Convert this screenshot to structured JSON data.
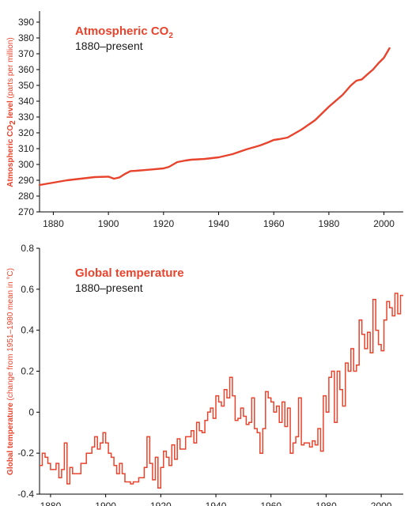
{
  "theme": {
    "accent": "#e8432c",
    "axis": "#000000",
    "text": "#222222"
  },
  "chart_data": [
    {
      "type": "line",
      "title": "Atmospheric CO",
      "title_subscript": "2",
      "subtitle": "1880–present",
      "ylabel": "Atmospheric CO",
      "ylabel_subscript": "2",
      "ylabel_tail": " level",
      "ylabel_note": " (parts per million)",
      "xlabel": "",
      "xlim": [
        1875,
        2007
      ],
      "ylim": [
        270,
        397
      ],
      "x_ticks": [
        1880,
        1900,
        1920,
        1940,
        1960,
        1980,
        2000
      ],
      "y_ticks": [
        270,
        280,
        290,
        300,
        310,
        320,
        330,
        340,
        350,
        360,
        370,
        380,
        390
      ],
      "series": [
        {
          "color": "#e8432c",
          "x": [
            1875,
            1880,
            1885,
            1890,
            1895,
            1900,
            1902,
            1904,
            1906,
            1908,
            1910,
            1915,
            1920,
            1922,
            1925,
            1928,
            1930,
            1935,
            1940,
            1945,
            1950,
            1955,
            1958,
            1960,
            1962,
            1965,
            1968,
            1970,
            1975,
            1980,
            1985,
            1988,
            1990,
            1992,
            1994,
            1996,
            1998,
            2000,
            2002
          ],
          "values": [
            287.0,
            288.5,
            290.0,
            291.0,
            292.0,
            292.3,
            291.0,
            291.8,
            294.0,
            295.8,
            296.0,
            296.7,
            297.5,
            298.5,
            301.5,
            302.5,
            303.0,
            303.5,
            304.5,
            306.5,
            309.5,
            312.0,
            314.0,
            315.5,
            316.0,
            317.0,
            320.0,
            322.0,
            328.0,
            336.5,
            344.0,
            350.0,
            353.0,
            353.8,
            357.0,
            360.0,
            364.0,
            367.5,
            373.5
          ]
        }
      ]
    },
    {
      "type": "line",
      "style": "step",
      "title": "Global temperature",
      "subtitle": "1880–present",
      "ylabel": "Global temperature",
      "ylabel_note": " (change from 1951–1980 mean in °C)",
      "xlabel": "",
      "xlim": [
        1876,
        2008
      ],
      "ylim": [
        -0.4,
        0.8
      ],
      "x_ticks": [
        1880,
        1900,
        1920,
        1940,
        1960,
        1980,
        2000
      ],
      "y_ticks": [
        -0.4,
        -0.2,
        0.0,
        0.2,
        0.4,
        0.6,
        0.8
      ],
      "series": [
        {
          "color": "#e8432c",
          "x": [
            1876,
            1877,
            1878,
            1879,
            1880,
            1881,
            1882,
            1883,
            1884,
            1885,
            1886,
            1887,
            1888,
            1889,
            1890,
            1891,
            1892,
            1893,
            1894,
            1895,
            1896,
            1897,
            1898,
            1899,
            1900,
            1901,
            1902,
            1903,
            1904,
            1905,
            1906,
            1907,
            1908,
            1909,
            1910,
            1911,
            1912,
            1913,
            1914,
            1915,
            1916,
            1917,
            1918,
            1919,
            1920,
            1921,
            1922,
            1923,
            1924,
            1925,
            1926,
            1927,
            1928,
            1929,
            1930,
            1931,
            1932,
            1933,
            1934,
            1935,
            1936,
            1937,
            1938,
            1939,
            1940,
            1941,
            1942,
            1943,
            1944,
            1945,
            1946,
            1947,
            1948,
            1949,
            1950,
            1951,
            1952,
            1953,
            1954,
            1955,
            1956,
            1957,
            1958,
            1959,
            1960,
            1961,
            1962,
            1963,
            1964,
            1965,
            1966,
            1967,
            1968,
            1969,
            1970,
            1971,
            1972,
            1973,
            1974,
            1975,
            1976,
            1977,
            1978,
            1979,
            1980,
            1981,
            1982,
            1983,
            1984,
            1985,
            1986,
            1987,
            1988,
            1989,
            1990,
            1991,
            1992,
            1993,
            1994,
            1995,
            1996,
            1997,
            1998,
            1999,
            2000,
            2001,
            2002,
            2003,
            2004,
            2005,
            2006,
            2007
          ],
          "values": [
            -0.26,
            -0.2,
            -0.22,
            -0.25,
            -0.28,
            -0.28,
            -0.25,
            -0.32,
            -0.28,
            -0.15,
            -0.35,
            -0.27,
            -0.3,
            -0.3,
            -0.3,
            -0.25,
            -0.25,
            -0.2,
            -0.2,
            -0.17,
            -0.12,
            -0.18,
            -0.15,
            -0.1,
            -0.15,
            -0.2,
            -0.22,
            -0.26,
            -0.3,
            -0.25,
            -0.3,
            -0.34,
            -0.34,
            -0.35,
            -0.34,
            -0.34,
            -0.32,
            -0.32,
            -0.27,
            -0.12,
            -0.25,
            -0.33,
            -0.22,
            -0.37,
            -0.27,
            -0.19,
            -0.22,
            -0.26,
            -0.16,
            -0.23,
            -0.13,
            -0.18,
            -0.18,
            -0.12,
            -0.12,
            -0.09,
            -0.15,
            -0.05,
            -0.09,
            -0.1,
            -0.04,
            0.0,
            0.02,
            -0.03,
            0.08,
            0.05,
            0.03,
            0.11,
            0.07,
            0.17,
            0.08,
            -0.04,
            -0.03,
            0.02,
            -0.02,
            -0.06,
            -0.05,
            0.07,
            -0.08,
            -0.1,
            -0.2,
            -0.08,
            0.1,
            0.07,
            0.05,
            0.0,
            0.03,
            -0.05,
            0.05,
            -0.07,
            0.02,
            -0.2,
            -0.15,
            -0.12,
            0.07,
            -0.16,
            -0.15,
            -0.15,
            -0.17,
            -0.14,
            -0.16,
            -0.08,
            -0.19,
            0.08,
            0.0,
            0.17,
            0.2,
            -0.05,
            0.2,
            0.11,
            0.03,
            0.24,
            0.2,
            0.31,
            0.2,
            0.23,
            0.45,
            0.38,
            0.31,
            0.39,
            0.29,
            0.55,
            0.4,
            0.33,
            0.3,
            0.45,
            0.54,
            0.51,
            0.47,
            0.58,
            0.48,
            0.57
          ]
        }
      ]
    }
  ]
}
